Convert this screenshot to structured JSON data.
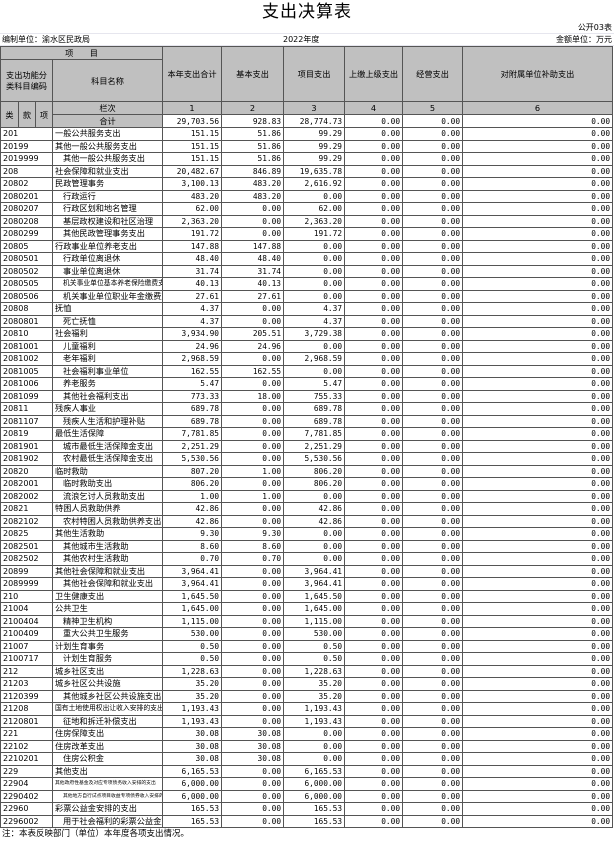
{
  "title": "支出决算表",
  "table_no": "公开03表",
  "unit_label": "编制单位：渝水区民政局",
  "year": "2022年度",
  "money_unit": "金额单位：万元",
  "header": {
    "item": "项　　目",
    "code_label": "支出功能分类科目编码",
    "name_label": "科目名称",
    "cols": [
      "本年支出合计",
      "基本支出",
      "项目支出",
      "上缴上级支出",
      "经营支出",
      "对附属单位补助支出"
    ],
    "lei": "类",
    "kuan": "款",
    "xiang": "项",
    "lanci": "栏次",
    "col_nums": [
      "1",
      "2",
      "3",
      "4",
      "5",
      "6"
    ],
    "total_label": "合计",
    "total": [
      "29,703.56",
      "928.83",
      "28,774.73",
      "0.00",
      "0.00",
      "0.00"
    ]
  },
  "rows": [
    [
      "201",
      "一般公共服务支出",
      "151.15",
      "51.86",
      "99.29",
      "0.00",
      "0.00",
      "0.00"
    ],
    [
      "20199",
      "其他一般公共服务支出",
      "151.15",
      "51.86",
      "99.29",
      "0.00",
      "0.00",
      "0.00"
    ],
    [
      "2019999",
      "其他一般公共服务支出",
      "151.15",
      "51.86",
      "99.29",
      "0.00",
      "0.00",
      "0.00"
    ],
    [
      "208",
      "社会保障和就业支出",
      "20,482.67",
      "846.89",
      "19,635.78",
      "0.00",
      "0.00",
      "0.00"
    ],
    [
      "20802",
      "民政管理事务",
      "3,100.13",
      "483.20",
      "2,616.92",
      "0.00",
      "0.00",
      "0.00"
    ],
    [
      "2080201",
      "行政运行",
      "483.20",
      "483.20",
      "0.00",
      "0.00",
      "0.00",
      "0.00"
    ],
    [
      "2080207",
      "行政区划和地名管理",
      "62.00",
      "0.00",
      "62.00",
      "0.00",
      "0.00",
      "0.00"
    ],
    [
      "2080208",
      "基层政权建设和社区治理",
      "2,363.20",
      "0.00",
      "2,363.20",
      "0.00",
      "0.00",
      "0.00"
    ],
    [
      "2080299",
      "其他民政管理事务支出",
      "191.72",
      "0.00",
      "191.72",
      "0.00",
      "0.00",
      "0.00"
    ],
    [
      "20805",
      "行政事业单位养老支出",
      "147.88",
      "147.88",
      "0.00",
      "0.00",
      "0.00",
      "0.00"
    ],
    [
      "2080501",
      "行政单位离退休",
      "48.40",
      "48.40",
      "0.00",
      "0.00",
      "0.00",
      "0.00"
    ],
    [
      "2080502",
      "事业单位离退休",
      "31.74",
      "31.74",
      "0.00",
      "0.00",
      "0.00",
      "0.00"
    ],
    [
      "2080505",
      "机关事业单位基本养老保险缴费支出",
      "40.13",
      "40.13",
      "0.00",
      "0.00",
      "0.00",
      "0.00"
    ],
    [
      "2080506",
      "机关事业单位职业年金缴费支出",
      "27.61",
      "27.61",
      "0.00",
      "0.00",
      "0.00",
      "0.00"
    ],
    [
      "20808",
      "抚恤",
      "4.37",
      "0.00",
      "4.37",
      "0.00",
      "0.00",
      "0.00"
    ],
    [
      "2080801",
      "死亡抚恤",
      "4.37",
      "0.00",
      "4.37",
      "0.00",
      "0.00",
      "0.00"
    ],
    [
      "20810",
      "社会福利",
      "3,934.90",
      "205.51",
      "3,729.38",
      "0.00",
      "0.00",
      "0.00"
    ],
    [
      "2081001",
      "儿童福利",
      "24.96",
      "24.96",
      "0.00",
      "0.00",
      "0.00",
      "0.00"
    ],
    [
      "2081002",
      "老年福利",
      "2,968.59",
      "0.00",
      "2,968.59",
      "0.00",
      "0.00",
      "0.00"
    ],
    [
      "2081005",
      "社会福利事业单位",
      "162.55",
      "162.55",
      "0.00",
      "0.00",
      "0.00",
      "0.00"
    ],
    [
      "2081006",
      "养老服务",
      "5.47",
      "0.00",
      "5.47",
      "0.00",
      "0.00",
      "0.00"
    ],
    [
      "2081099",
      "其他社会福利支出",
      "773.33",
      "18.00",
      "755.33",
      "0.00",
      "0.00",
      "0.00"
    ],
    [
      "20811",
      "残疾人事业",
      "689.78",
      "0.00",
      "689.78",
      "0.00",
      "0.00",
      "0.00"
    ],
    [
      "2081107",
      "残疾人生活和护理补贴",
      "689.78",
      "0.00",
      "689.78",
      "0.00",
      "0.00",
      "0.00"
    ],
    [
      "20819",
      "最低生活保障",
      "7,781.85",
      "0.00",
      "7,781.85",
      "0.00",
      "0.00",
      "0.00"
    ],
    [
      "2081901",
      "城市最低生活保障金支出",
      "2,251.29",
      "0.00",
      "2,251.29",
      "0.00",
      "0.00",
      "0.00"
    ],
    [
      "2081902",
      "农村最低生活保障金支出",
      "5,530.56",
      "0.00",
      "5,530.56",
      "0.00",
      "0.00",
      "0.00"
    ],
    [
      "20820",
      "临时救助",
      "807.20",
      "1.00",
      "806.20",
      "0.00",
      "0.00",
      "0.00"
    ],
    [
      "2082001",
      "临时救助支出",
      "806.20",
      "0.00",
      "806.20",
      "0.00",
      "0.00",
      "0.00"
    ],
    [
      "2082002",
      "流浪乞讨人员救助支出",
      "1.00",
      "1.00",
      "0.00",
      "0.00",
      "0.00",
      "0.00"
    ],
    [
      "20821",
      "特困人员救助供养",
      "42.86",
      "0.00",
      "42.86",
      "0.00",
      "0.00",
      "0.00"
    ],
    [
      "2082102",
      "农村特困人员救助供养支出",
      "42.86",
      "0.00",
      "42.86",
      "0.00",
      "0.00",
      "0.00"
    ],
    [
      "20825",
      "其他生活救助",
      "9.30",
      "9.30",
      "0.00",
      "0.00",
      "0.00",
      "0.00"
    ],
    [
      "2082501",
      "其他城市生活救助",
      "8.60",
      "8.60",
      "0.00",
      "0.00",
      "0.00",
      "0.00"
    ],
    [
      "2082502",
      "其他农村生活救助",
      "0.70",
      "0.70",
      "0.00",
      "0.00",
      "0.00",
      "0.00"
    ],
    [
      "20899",
      "其他社会保障和就业支出",
      "3,964.41",
      "0.00",
      "3,964.41",
      "0.00",
      "0.00",
      "0.00"
    ],
    [
      "2089999",
      "其他社会保障和就业支出",
      "3,964.41",
      "0.00",
      "3,964.41",
      "0.00",
      "0.00",
      "0.00"
    ],
    [
      "210",
      "卫生健康支出",
      "1,645.50",
      "0.00",
      "1,645.50",
      "0.00",
      "0.00",
      "0.00"
    ],
    [
      "21004",
      "公共卫生",
      "1,645.00",
      "0.00",
      "1,645.00",
      "0.00",
      "0.00",
      "0.00"
    ],
    [
      "2100404",
      "精神卫生机构",
      "1,115.00",
      "0.00",
      "1,115.00",
      "0.00",
      "0.00",
      "0.00"
    ],
    [
      "2100409",
      "重大公共卫生服务",
      "530.00",
      "0.00",
      "530.00",
      "0.00",
      "0.00",
      "0.00"
    ],
    [
      "21007",
      "计划生育事务",
      "0.50",
      "0.00",
      "0.50",
      "0.00",
      "0.00",
      "0.00"
    ],
    [
      "2100717",
      "计划生育服务",
      "0.50",
      "0.00",
      "0.50",
      "0.00",
      "0.00",
      "0.00"
    ],
    [
      "212",
      "城乡社区支出",
      "1,228.63",
      "0.00",
      "1,228.63",
      "0.00",
      "0.00",
      "0.00"
    ],
    [
      "21203",
      "城乡社区公共设施",
      "35.20",
      "0.00",
      "35.20",
      "0.00",
      "0.00",
      "0.00"
    ],
    [
      "2120399",
      "其他城乡社区公共设施支出",
      "35.20",
      "0.00",
      "35.20",
      "0.00",
      "0.00",
      "0.00"
    ],
    [
      "21208",
      "国有土地使用权出让收入安排的支出",
      "1,193.43",
      "0.00",
      "1,193.43",
      "0.00",
      "0.00",
      "0.00"
    ],
    [
      "2120801",
      "征地和拆迁补偿支出",
      "1,193.43",
      "0.00",
      "1,193.43",
      "0.00",
      "0.00",
      "0.00"
    ],
    [
      "221",
      "住房保障支出",
      "30.08",
      "30.08",
      "0.00",
      "0.00",
      "0.00",
      "0.00"
    ],
    [
      "22102",
      "住房改革支出",
      "30.08",
      "30.08",
      "0.00",
      "0.00",
      "0.00",
      "0.00"
    ],
    [
      "2210201",
      "住房公积金",
      "30.08",
      "30.08",
      "0.00",
      "0.00",
      "0.00",
      "0.00"
    ],
    [
      "229",
      "其他支出",
      "6,165.53",
      "0.00",
      "6,165.53",
      "0.00",
      "0.00",
      "0.00"
    ],
    [
      "22904",
      "其他政府性基金及对应专项债务收入安排的支出",
      "6,000.00",
      "0.00",
      "6,000.00",
      "0.00",
      "0.00",
      "0.00"
    ],
    [
      "2290402",
      "其他地方自行试点项目收益专项债券收入安排的支出",
      "6,000.00",
      "0.00",
      "6,000.00",
      "0.00",
      "0.00",
      "0.00"
    ],
    [
      "22960",
      "彩票公益金安排的支出",
      "165.53",
      "0.00",
      "165.53",
      "0.00",
      "0.00",
      "0.00"
    ],
    [
      "2296002",
      "用于社会福利的彩票公益金支出",
      "165.53",
      "0.00",
      "165.53",
      "0.00",
      "0.00",
      "0.00"
    ]
  ],
  "note": "注：本表反映部门（单位）本年度各项支出情况。"
}
